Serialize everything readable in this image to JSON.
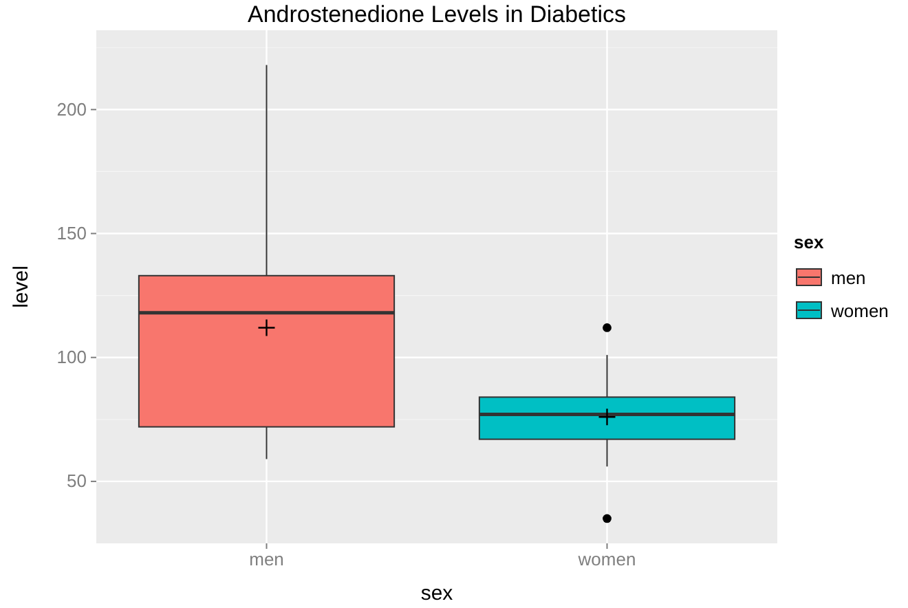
{
  "chart_data": {
    "type": "box",
    "title": "Androstenedione Levels in Diabetics",
    "xlabel": "sex",
    "ylabel": "level",
    "legend_title": "sex",
    "categories": [
      "men",
      "women"
    ],
    "series": [
      {
        "name": "men",
        "color": "#f8766d",
        "boxes": [
          {
            "low": 59,
            "q1": 72,
            "median": 118,
            "q3": 133,
            "high": 218,
            "mean": 112
          },
          null
        ]
      },
      {
        "name": "women",
        "color": "#00bfc4",
        "boxes": [
          null,
          {
            "low": 56,
            "q1": 67,
            "median": 77,
            "q3": 84,
            "high": 101,
            "mean": 76,
            "outliers": [
              112,
              35
            ]
          }
        ]
      }
    ],
    "ylim": [
      25,
      232
    ],
    "yticks": [
      50,
      100,
      150,
      200
    ],
    "grid": true,
    "legend": "right"
  }
}
